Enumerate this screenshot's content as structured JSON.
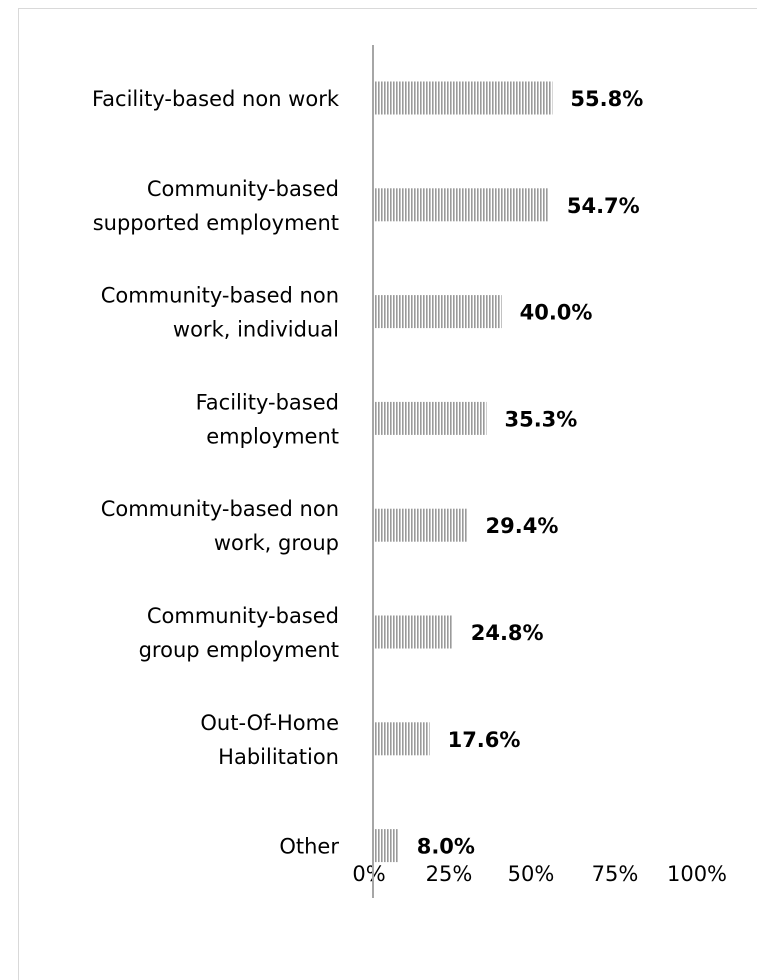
{
  "caption_fragment": "",
  "colors": {
    "bar": "#ababab",
    "axis": "#a6a6a6",
    "frame": "#d9d9d9"
  },
  "chart_data": {
    "type": "bar",
    "orientation": "horizontal",
    "title": "",
    "xlabel": "",
    "ylabel": "",
    "categories": [
      [
        "Facility-based non work"
      ],
      [
        "Community-based",
        "supported employment"
      ],
      [
        "Community-based non",
        "work, individual"
      ],
      [
        "Facility-based",
        "employment"
      ],
      [
        "Community-based non",
        "work, group"
      ],
      [
        "Community-based",
        "group employment"
      ],
      [
        "Out-Of-Home",
        "Habilitation"
      ],
      [
        "Other"
      ]
    ],
    "values": [
      55.8,
      54.7,
      40.0,
      35.3,
      29.4,
      24.8,
      17.6,
      8.0
    ],
    "value_labels": [
      "55.8%",
      "54.7%",
      "40.0%",
      "35.3%",
      "29.4%",
      "24.8%",
      "17.6%",
      "8.0%"
    ],
    "xlim": [
      0,
      100
    ],
    "x_ticks": [
      "0%",
      "25%",
      "50%",
      "75%",
      "100%"
    ],
    "bar_pattern": "vertical-hatch",
    "grid": false,
    "legend": "none"
  }
}
